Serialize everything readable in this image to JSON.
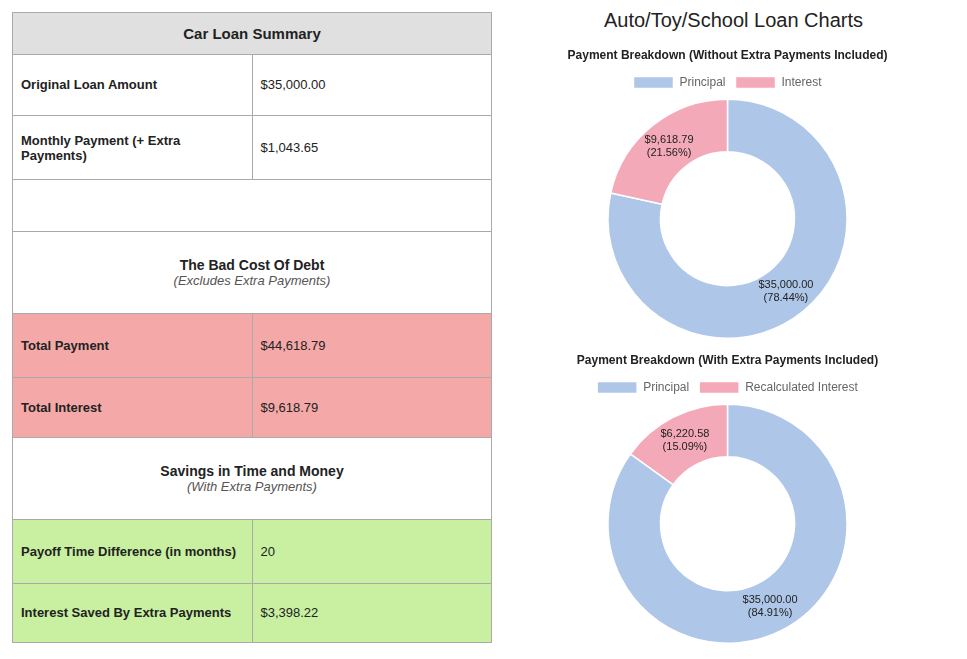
{
  "title": "Auto/Toy/School Loan Charts",
  "table": {
    "header": "Car Loan Summary",
    "header_color": "#e0e0e0",
    "rows": [
      {
        "label": "Original Loan Amount",
        "value": "$35,000.00",
        "color": "#ffffff"
      },
      {
        "label": "Monthly Payment (+ Extra Payments)",
        "value": "$1,043.65",
        "color": "#ffffff"
      },
      null,
      {
        "title": "The Bad Cost Of Debt",
        "subtitle": "(Excludes Extra Payments)"
      },
      {
        "label": "Total Payment",
        "value": "$44,618.79",
        "color": "#f4a9a8"
      },
      {
        "label": "Total Interest",
        "value": "$9,618.79",
        "color": "#f4a9a8"
      },
      {
        "title": "Savings in Time and Money",
        "subtitle": "(With Extra Payments)"
      },
      {
        "label": "Payoff Time Difference (in months)",
        "value": "20",
        "color": "#c8f0a0"
      },
      {
        "label": "Interest Saved By Extra Payments",
        "value": "$3,398.22",
        "color": "#c8f0a0"
      }
    ]
  },
  "chart_data": [
    {
      "type": "doughnut",
      "title": "Payment Breakdown (Without Extra Payments Included)",
      "categories": [
        "Principal",
        "Interest"
      ],
      "values": [
        35000.0,
        9618.79
      ],
      "value_labels": [
        "$35,000.00",
        "$9,618.79"
      ],
      "percent_labels": [
        "(78.44%)",
        "(21.56%)"
      ],
      "colors": [
        "#aec6e8",
        "#f4a9b8"
      ],
      "legend": "top",
      "data_labels": true
    },
    {
      "type": "doughnut",
      "title": "Payment Breakdown (With Extra Payments Included)",
      "categories": [
        "Principal",
        "Recalculated Interest"
      ],
      "values": [
        35000.0,
        6220.58
      ],
      "value_labels": [
        "$35,000.00",
        "$6,220.58"
      ],
      "percent_labels": [
        "(84.91%)",
        "(15.09%)"
      ],
      "colors": [
        "#aec6e8",
        "#f4a9b8"
      ],
      "legend": "top",
      "data_labels": true
    }
  ]
}
